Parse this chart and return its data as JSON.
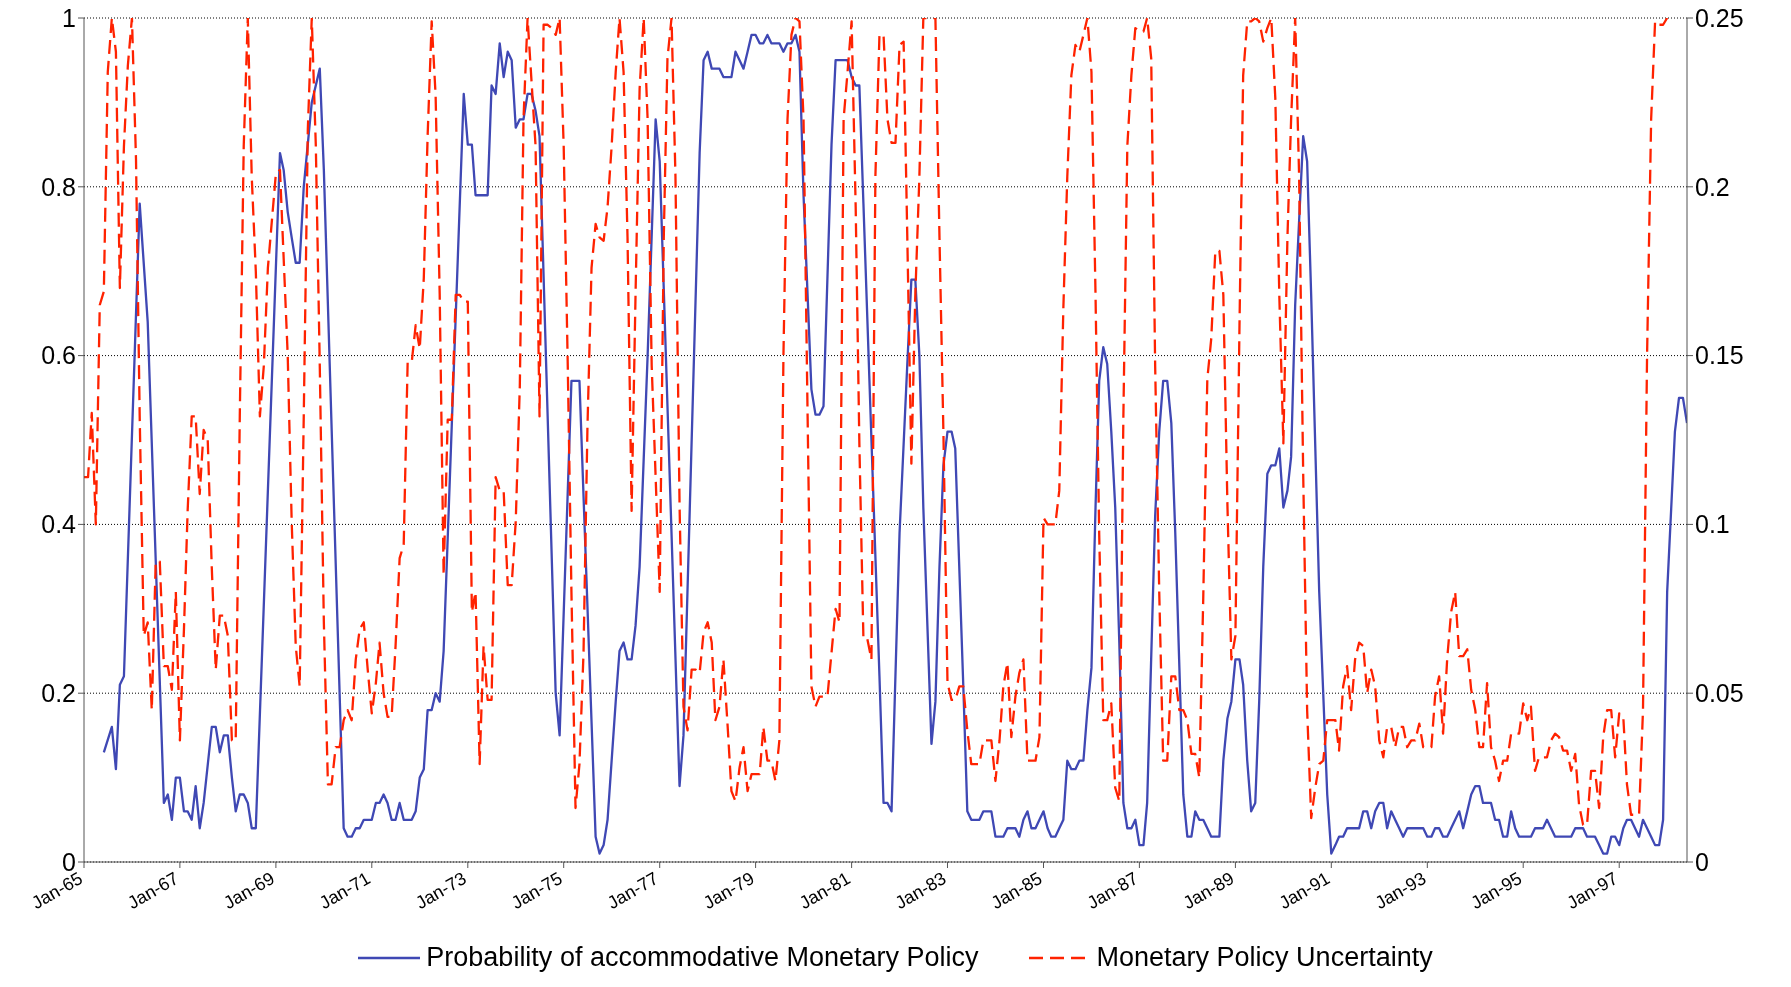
{
  "chart_data": {
    "type": "line",
    "legend": "bottom",
    "grid": "y",
    "xlim": [
      "1965-01",
      "1998-06"
    ],
    "xticks": [
      {
        "value": "1965-01",
        "label": "Jan-65"
      },
      {
        "value": "1967-01",
        "label": "Jan-67"
      },
      {
        "value": "1969-01",
        "label": "Jan-69"
      },
      {
        "value": "1971-01",
        "label": "Jan-71"
      },
      {
        "value": "1973-01",
        "label": "Jan-73"
      },
      {
        "value": "1975-01",
        "label": "Jan-75"
      },
      {
        "value": "1977-01",
        "label": "Jan-77"
      },
      {
        "value": "1979-01",
        "label": "Jan-79"
      },
      {
        "value": "1981-01",
        "label": "Jan-81"
      },
      {
        "value": "1983-01",
        "label": "Jan-83"
      },
      {
        "value": "1985-01",
        "label": "Jan-85"
      },
      {
        "value": "1987-01",
        "label": "Jan-87"
      },
      {
        "value": "1989-01",
        "label": "Jan-89"
      },
      {
        "value": "1991-01",
        "label": "Jan-91"
      },
      {
        "value": "1993-01",
        "label": "Jan-93"
      },
      {
        "value": "1995-01",
        "label": "Jan-95"
      },
      {
        "value": "1997-01",
        "label": "Jan-97"
      }
    ],
    "ylim": [
      0,
      1
    ],
    "yticks": [
      0,
      0.2,
      0.4,
      0.6,
      0.8,
      1
    ],
    "y2lim": [
      0,
      0.25
    ],
    "y2ticks": [
      0,
      0.05,
      0.1,
      0.15,
      0.2,
      0.25
    ],
    "series": [
      {
        "name": "Probability of accommodative Monetary Policy",
        "color": "#3f48b4",
        "line_style": "solid",
        "x": [
          "1965-06",
          "1965-08",
          "1965-09",
          "1965-10",
          "1965-11",
          "1966-03",
          "1966-05",
          "1966-09",
          "1966-10",
          "1966-11",
          "1966-12",
          "1967-01",
          "1967-02",
          "1967-03",
          "1967-04",
          "1967-05",
          "1967-06",
          "1967-07",
          "1967-09",
          "1967-10",
          "1967-11",
          "1967-12",
          "1968-01",
          "1968-02",
          "1968-03",
          "1968-04",
          "1968-05",
          "1968-06",
          "1968-07",
          "1968-08",
          "1969-02",
          "1969-03",
          "1969-04",
          "1969-05",
          "1969-06",
          "1969-07",
          "1969-08",
          "1969-10",
          "1969-12",
          "1970-01",
          "1970-06",
          "1970-07",
          "1970-08",
          "1970-09",
          "1970-10",
          "1970-11",
          "1970-12",
          "1971-01",
          "1971-02",
          "1971-03",
          "1971-04",
          "1971-05",
          "1971-06",
          "1971-07",
          "1971-08",
          "1971-09",
          "1971-10",
          "1971-11",
          "1971-12",
          "1972-01",
          "1972-02",
          "1972-03",
          "1972-04",
          "1972-05",
          "1972-06",
          "1972-07",
          "1972-12",
          "1973-01",
          "1973-02",
          "1973-03",
          "1973-04",
          "1973-05",
          "1973-06",
          "1973-07",
          "1973-08",
          "1973-09",
          "1973-10",
          "1973-11",
          "1973-12",
          "1974-01",
          "1974-02",
          "1974-03",
          "1974-04",
          "1974-05",
          "1974-06",
          "1974-07",
          "1974-11",
          "1974-12",
          "1975-03",
          "1975-04",
          "1975-05",
          "1975-09",
          "1975-10",
          "1975-11",
          "1975-12",
          "1976-02",
          "1976-03",
          "1976-04",
          "1976-05",
          "1976-06",
          "1976-07",
          "1976-08",
          "1976-10",
          "1976-12",
          "1977-01",
          "1977-06",
          "1977-07",
          "1977-11",
          "1977-12",
          "1978-01",
          "1978-02",
          "1978-03",
          "1978-04",
          "1978-05",
          "1978-06",
          "1978-07",
          "1978-08",
          "1978-09",
          "1978-10",
          "1978-11",
          "1978-12",
          "1979-01",
          "1979-02",
          "1979-03",
          "1979-04",
          "1979-05",
          "1979-06",
          "1979-07",
          "1979-08",
          "1979-09",
          "1979-10",
          "1979-11",
          "1979-12",
          "1980-01",
          "1980-03",
          "1980-04",
          "1980-05",
          "1980-06",
          "1980-08",
          "1980-09",
          "1980-10",
          "1980-11",
          "1980-12",
          "1981-01",
          "1981-02",
          "1981-03",
          "1981-04",
          "1981-08",
          "1981-09",
          "1981-10",
          "1981-11",
          "1982-01",
          "1982-03",
          "1982-04",
          "1982-05",
          "1982-06",
          "1982-07",
          "1982-09",
          "1982-10",
          "1982-11",
          "1982-12",
          "1983-01",
          "1983-02",
          "1983-03",
          "1983-05",
          "1983-06",
          "1983-07",
          "1983-08",
          "1983-09",
          "1983-10",
          "1983-11",
          "1983-12",
          "1984-01",
          "1984-02",
          "1984-03",
          "1984-04",
          "1984-05",
          "1984-06",
          "1984-07",
          "1984-08",
          "1984-09",
          "1984-10",
          "1984-11",
          "1984-12",
          "1985-01",
          "1985-02",
          "1985-03",
          "1985-04",
          "1985-05",
          "1985-06",
          "1985-07",
          "1985-08",
          "1985-09",
          "1985-10",
          "1985-11",
          "1985-12",
          "1986-01",
          "1986-02",
          "1986-03",
          "1986-04",
          "1986-05",
          "1986-06",
          "1986-07",
          "1986-08",
          "1986-09",
          "1986-10",
          "1986-11",
          "1986-12",
          "1987-01",
          "1987-02",
          "1987-03",
          "1987-05",
          "1987-06",
          "1987-07",
          "1987-08",
          "1987-09",
          "1987-10",
          "1987-12",
          "1988-01",
          "1988-02",
          "1988-03",
          "1988-04",
          "1988-05",
          "1988-06",
          "1988-07",
          "1988-08",
          "1988-09",
          "1988-10",
          "1988-11",
          "1988-12",
          "1989-01",
          "1989-02",
          "1989-03",
          "1989-04",
          "1989-05",
          "1989-06",
          "1989-07",
          "1989-08",
          "1989-09",
          "1989-10",
          "1989-11",
          "1989-12",
          "1990-01",
          "1990-02",
          "1990-03",
          "1990-04",
          "1990-05",
          "1990-06",
          "1990-07",
          "1990-08",
          "1990-10",
          "1990-12",
          "1991-01",
          "1991-02",
          "1991-03",
          "1991-04",
          "1991-05",
          "1991-06",
          "1991-07",
          "1991-08",
          "1991-09",
          "1991-10",
          "1991-11",
          "1991-12",
          "1992-01",
          "1992-02",
          "1992-03",
          "1992-04",
          "1992-05",
          "1992-06",
          "1992-07",
          "1992-08",
          "1992-09",
          "1992-10",
          "1992-11",
          "1992-12",
          "1993-01",
          "1993-02",
          "1993-03",
          "1993-04",
          "1993-05",
          "1993-06",
          "1993-07",
          "1993-08",
          "1993-09",
          "1993-10",
          "1993-11",
          "1993-12",
          "1994-01",
          "1994-02",
          "1994-03",
          "1994-04",
          "1994-05",
          "1994-06",
          "1994-07",
          "1994-08",
          "1994-09",
          "1994-10",
          "1994-11",
          "1994-12",
          "1995-01",
          "1995-02",
          "1995-03",
          "1995-04",
          "1995-05",
          "1995-06",
          "1995-07",
          "1995-08",
          "1995-09",
          "1995-10",
          "1995-11",
          "1995-12",
          "1996-01",
          "1996-02",
          "1996-03",
          "1996-04",
          "1996-05",
          "1996-06",
          "1996-07",
          "1996-08",
          "1996-09",
          "1996-10",
          "1996-11",
          "1996-12",
          "1997-01",
          "1997-02",
          "1997-03",
          "1997-04",
          "1997-06",
          "1997-07",
          "1997-08",
          "1997-09",
          "1997-10",
          "1997-11",
          "1997-12",
          "1998-01",
          "1998-03",
          "1998-04",
          "1998-05",
          "1998-06"
        ],
        "values": [
          0.13,
          0.16,
          0.11,
          0.21,
          0.22,
          0.78,
          0.64,
          0.07,
          0.08,
          0.05,
          0.1,
          0.1,
          0.06,
          0.06,
          0.05,
          0.09,
          0.04,
          0.07,
          0.16,
          0.16,
          0.13,
          0.15,
          0.15,
          0.1,
          0.06,
          0.08,
          0.08,
          0.07,
          0.04,
          0.04,
          0.84,
          0.82,
          0.77,
          0.74,
          0.71,
          0.71,
          0.8,
          0.9,
          0.94,
          0.82,
          0.04,
          0.03,
          0.03,
          0.04,
          0.04,
          0.05,
          0.05,
          0.05,
          0.07,
          0.07,
          0.08,
          0.07,
          0.05,
          0.05,
          0.07,
          0.05,
          0.05,
          0.05,
          0.06,
          0.1,
          0.11,
          0.18,
          0.18,
          0.2,
          0.19,
          0.25,
          0.91,
          0.85,
          0.85,
          0.79,
          0.79,
          0.79,
          0.79,
          0.92,
          0.91,
          0.97,
          0.93,
          0.96,
          0.95,
          0.87,
          0.88,
          0.88,
          0.91,
          0.91,
          0.89,
          0.86,
          0.2,
          0.15,
          0.57,
          0.57,
          0.57,
          0.03,
          0.01,
          0.02,
          0.05,
          0.19,
          0.25,
          0.26,
          0.24,
          0.24,
          0.28,
          0.35,
          0.6,
          0.88,
          0.83,
          0.09,
          0.15,
          0.84,
          0.95,
          0.96,
          0.94,
          0.94,
          0.94,
          0.93,
          0.93,
          0.93,
          0.96,
          0.95,
          0.94,
          0.96,
          0.98,
          0.98,
          0.97,
          0.97,
          0.98,
          0.97,
          0.97,
          0.97,
          0.96,
          0.97,
          0.97,
          0.98,
          0.96,
          0.79,
          0.56,
          0.53,
          0.53,
          0.54,
          0.85,
          0.95,
          0.95,
          0.95,
          0.95,
          0.93,
          0.92,
          0.92,
          0.78,
          0.22,
          0.07,
          0.07,
          0.06,
          0.39,
          0.59,
          0.69,
          0.69,
          0.6,
          0.42,
          0.14,
          0.19,
          0.35,
          0.47,
          0.51,
          0.51,
          0.49,
          0.21,
          0.06,
          0.05,
          0.05,
          0.05,
          0.06,
          0.06,
          0.06,
          0.03,
          0.03,
          0.03,
          0.04,
          0.04,
          0.04,
          0.03,
          0.05,
          0.06,
          0.04,
          0.04,
          0.05,
          0.06,
          0.04,
          0.03,
          0.03,
          0.04,
          0.05,
          0.12,
          0.11,
          0.11,
          0.12,
          0.12,
          0.18,
          0.23,
          0.42,
          0.57,
          0.61,
          0.59,
          0.51,
          0.42,
          0.26,
          0.07,
          0.04,
          0.04,
          0.05,
          0.02,
          0.02,
          0.07,
          0.41,
          0.51,
          0.57,
          0.57,
          0.52,
          0.39,
          0.08,
          0.03,
          0.03,
          0.06,
          0.05,
          0.05,
          0.04,
          0.03,
          0.03,
          0.03,
          0.12,
          0.17,
          0.19,
          0.24,
          0.24,
          0.21,
          0.12,
          0.06,
          0.07,
          0.19,
          0.35,
          0.46,
          0.47,
          0.47,
          0.49,
          0.42,
          0.44,
          0.48,
          0.66,
          0.76,
          0.86,
          0.83,
          0.67,
          0.32,
          0.08,
          0.01,
          0.02,
          0.03,
          0.03,
          0.04,
          0.04,
          0.04,
          0.04,
          0.06,
          0.06,
          0.04,
          0.06,
          0.07,
          0.07,
          0.04,
          0.06,
          0.05,
          0.04,
          0.03,
          0.04,
          0.04,
          0.04,
          0.04,
          0.04,
          0.03,
          0.03,
          0.04,
          0.04,
          0.03,
          0.03,
          0.04,
          0.05,
          0.06,
          0.04,
          0.06,
          0.08,
          0.09,
          0.09,
          0.07,
          0.07,
          0.07,
          0.05,
          0.05,
          0.03,
          0.03,
          0.06,
          0.04,
          0.03,
          0.03,
          0.03,
          0.03,
          0.04,
          0.04,
          0.04,
          0.05,
          0.04,
          0.03,
          0.03,
          0.03,
          0.03,
          0.03,
          0.04,
          0.04,
          0.04,
          0.03,
          0.03,
          0.03,
          0.02,
          0.01,
          0.01,
          0.03,
          0.03,
          0.02,
          0.04,
          0.05,
          0.05,
          0.03,
          0.05,
          0.04,
          0.03,
          0.02,
          0.02,
          0.05,
          0.32,
          0.51,
          0.55,
          0.55,
          0.52
        ]
      },
      {
        "name": "Monetary Policy Uncertainty",
        "color": "#ff2200",
        "line_style": "dashed",
        "axis": "y2",
        "x": [
          "1965-01",
          "1965-02",
          "1965-03",
          "1965-04",
          "1965-05",
          "1965-06",
          "1965-07",
          "1965-08",
          "1965-09",
          "1965-10",
          "1965-11",
          "1965-12",
          "1966-01",
          "1966-02",
          "1966-03",
          "1966-04",
          "1966-05",
          "1966-06",
          "1966-07",
          "1966-08",
          "1966-09",
          "1966-10",
          "1966-11",
          "1966-12",
          "1967-01",
          "1967-02",
          "1967-03",
          "1967-04",
          "1967-05",
          "1967-06",
          "1967-07",
          "1967-08",
          "1967-09",
          "1967-10",
          "1967-11",
          "1967-12",
          "1968-01",
          "1968-02",
          "1968-03",
          "1968-04",
          "1968-05",
          "1968-06",
          "1968-07",
          "1968-08",
          "1968-09",
          "1968-10",
          "1968-11",
          "1969-01",
          "1969-02",
          "1969-04",
          "1969-05",
          "1969-06",
          "1969-07",
          "1969-08",
          "1969-09",
          "1969-10",
          "1969-11",
          "1969-12",
          "1970-01",
          "1970-02",
          "1970-03",
          "1970-04",
          "1970-05",
          "1970-06",
          "1970-07",
          "1970-08",
          "1970-09",
          "1970-10",
          "1970-11",
          "1970-12",
          "1971-01",
          "1971-02",
          "1971-03",
          "1971-04",
          "1971-05",
          "1971-06",
          "1971-07",
          "1971-08",
          "1971-09",
          "1971-10",
          "1971-11",
          "1971-12",
          "1972-01",
          "1972-02",
          "1972-03",
          "1972-04",
          "1972-05",
          "1972-06",
          "1972-07",
          "1972-08",
          "1972-09",
          "1972-10",
          "1972-11",
          "1972-12",
          "1973-01",
          "1973-02",
          "1973-03",
          "1973-04",
          "1973-05",
          "1973-06",
          "1973-07",
          "1973-08",
          "1973-09",
          "1973-10",
          "1973-11",
          "1973-12",
          "1974-01",
          "1974-02",
          "1974-03",
          "1974-04",
          "1974-06",
          "1974-07",
          "1974-08",
          "1974-09",
          "1974-10",
          "1974-11",
          "1974-12",
          "1975-01",
          "1975-02",
          "1975-03",
          "1975-04",
          "1975-05",
          "1975-06",
          "1975-07",
          "1975-08",
          "1975-09",
          "1975-10",
          "1975-11",
          "1975-12",
          "1976-01",
          "1976-02",
          "1976-03",
          "1976-04",
          "1976-05",
          "1976-06",
          "1976-07",
          "1976-08",
          "1976-09",
          "1976-10",
          "1976-11",
          "1977-01",
          "1977-02",
          "1977-03",
          "1977-04",
          "1977-05",
          "1977-06",
          "1977-07",
          "1977-08",
          "1977-09",
          "1977-10",
          "1977-11",
          "1977-12",
          "1978-01",
          "1978-02",
          "1978-03",
          "1978-04",
          "1978-05",
          "1978-06",
          "1978-07",
          "1978-08",
          "1978-09",
          "1978-10",
          "1978-11",
          "1978-12",
          "1979-01",
          "1979-02",
          "1979-03",
          "1979-04",
          "1979-05",
          "1979-06",
          "1979-07",
          "1979-08",
          "1979-09",
          "1979-10",
          "1979-11",
          "1979-12",
          "1980-01",
          "1980-02",
          "1980-03",
          "1980-04",
          "1980-05",
          "1980-06",
          "1980-07",
          "1980-08",
          "1980-09",
          "1980-10",
          "1980-11",
          "1980-12",
          "1981-01",
          "1981-02",
          "1981-03",
          "1981-04",
          "1981-05",
          "1981-06",
          "1981-07",
          "1981-08",
          "1981-09",
          "1981-10",
          "1981-11",
          "1981-12",
          "1982-01",
          "1982-02",
          "1982-03",
          "1982-04",
          "1982-05",
          "1982-06",
          "1982-07",
          "1982-08",
          "1982-09",
          "1982-10",
          "1982-11",
          "1982-12",
          "1983-01",
          "1983-02",
          "1983-03",
          "1983-04",
          "1983-05",
          "1983-06",
          "1983-07",
          "1983-08",
          "1983-09",
          "1983-10",
          "1983-11",
          "1983-12",
          "1984-01",
          "1984-02",
          "1984-03",
          "1984-04",
          "1984-05",
          "1984-06",
          "1984-07",
          "1984-08",
          "1984-09",
          "1984-10",
          "1984-11",
          "1984-12",
          "1985-01",
          "1985-02",
          "1985-03",
          "1985-04",
          "1985-05",
          "1985-06",
          "1985-07",
          "1985-08",
          "1985-09",
          "1985-10",
          "1985-11",
          "1985-12",
          "1986-01",
          "1986-02",
          "1986-03",
          "1986-04",
          "1986-05",
          "1986-06",
          "1986-07",
          "1986-08",
          "1986-09",
          "1986-10",
          "1986-11",
          "1986-12",
          "1987-01",
          "1987-02",
          "1987-03",
          "1987-04",
          "1987-05",
          "1987-06",
          "1987-07",
          "1987-08",
          "1987-09",
          "1987-10",
          "1987-11",
          "1987-12",
          "1988-01",
          "1988-02",
          "1988-03",
          "1988-04",
          "1988-05",
          "1988-06",
          "1988-07",
          "1988-08",
          "1988-09",
          "1988-10",
          "1988-11",
          "1988-12",
          "1989-01",
          "1989-02",
          "1989-03",
          "1989-04",
          "1989-05",
          "1989-06",
          "1989-07",
          "1989-08",
          "1989-09",
          "1989-10",
          "1989-11",
          "1989-12",
          "1990-01",
          "1990-02",
          "1990-03",
          "1990-04",
          "1990-05",
          "1990-06",
          "1990-07",
          "1990-08",
          "1990-09",
          "1990-10",
          "1990-11",
          "1990-12",
          "1991-01",
          "1991-02",
          "1991-03",
          "1991-04",
          "1991-05",
          "1991-06",
          "1991-07",
          "1991-08",
          "1991-09",
          "1991-10",
          "1991-11",
          "1991-12",
          "1992-01",
          "1992-02",
          "1992-03",
          "1992-04",
          "1992-05",
          "1992-06",
          "1992-07",
          "1992-08",
          "1992-09",
          "1992-10",
          "1992-11",
          "1992-12",
          "1993-01",
          "1993-02",
          "1993-03",
          "1993-04",
          "1993-05",
          "1993-06",
          "1993-07",
          "1993-08",
          "1993-09",
          "1993-10",
          "1993-11",
          "1993-12",
          "1994-01",
          "1994-02",
          "1994-03",
          "1994-04",
          "1994-05",
          "1994-06",
          "1994-07",
          "1994-08",
          "1994-09",
          "1994-10",
          "1994-11",
          "1994-12",
          "1995-01",
          "1995-02",
          "1995-03",
          "1995-04",
          "1995-05",
          "1995-06",
          "1995-07",
          "1995-08",
          "1995-09",
          "1995-10",
          "1995-11",
          "1995-12",
          "1996-01",
          "1996-02",
          "1996-03",
          "1996-04",
          "1996-05",
          "1996-06",
          "1996-07",
          "1996-08",
          "1996-09",
          "1996-10",
          "1996-11",
          "1996-12",
          "1997-01",
          "1997-02",
          "1997-03",
          "1997-04",
          "1997-06",
          "1997-07",
          "1997-08",
          "1997-09",
          "1997-10",
          "1997-11",
          "1997-12",
          "1998-01"
        ],
        "values": [
          0.114,
          0.114,
          0.133,
          0.1,
          0.165,
          0.169,
          0.234,
          0.25,
          0.24,
          0.17,
          0.212,
          0.236,
          0.25,
          0.208,
          0.132,
          0.067,
          0.071,
          0.045,
          0.089,
          0.089,
          0.058,
          0.058,
          0.051,
          0.08,
          0.036,
          0.069,
          0.104,
          0.132,
          0.132,
          0.109,
          0.128,
          0.125,
          0.087,
          0.057,
          0.073,
          0.073,
          0.067,
          0.036,
          0.036,
          0.132,
          0.212,
          0.25,
          0.203,
          0.175,
          0.132,
          0.147,
          0.176,
          0.204,
          0.205,
          0.15,
          0.101,
          0.064,
          0.052,
          0.132,
          0.217,
          0.25,
          0.212,
          0.147,
          0.071,
          0.023,
          0.023,
          0.034,
          0.034,
          0.042,
          0.045,
          0.042,
          0.06,
          0.069,
          0.071,
          0.057,
          0.044,
          0.053,
          0.065,
          0.05,
          0.043,
          0.043,
          0.064,
          0.09,
          0.094,
          0.148,
          0.148,
          0.159,
          0.152,
          0.173,
          0.215,
          0.249,
          0.227,
          0.168,
          0.085,
          0.131,
          0.131,
          0.168,
          0.168,
          0.166,
          0.166,
          0.074,
          0.08,
          0.029,
          0.064,
          0.048,
          0.048,
          0.114,
          0.11,
          0.11,
          0.082,
          0.082,
          0.101,
          0.141,
          0.22,
          0.25,
          0.212,
          0.132,
          0.248,
          0.248,
          0.247,
          0.245,
          0.25,
          0.212,
          0.147,
          0.08,
          0.016,
          0.029,
          0.062,
          0.129,
          0.176,
          0.189,
          0.185,
          0.184,
          0.194,
          0.212,
          0.234,
          0.25,
          0.234,
          0.185,
          0.104,
          0.168,
          0.229,
          0.25,
          0.22,
          0.147,
          0.08,
          0.185,
          0.238,
          0.25,
          0.203,
          0.106,
          0.046,
          0.039,
          0.057,
          0.057,
          0.056,
          0.068,
          0.071,
          0.065,
          0.042,
          0.046,
          0.06,
          0.041,
          0.021,
          0.018,
          0.028,
          0.034,
          0.021,
          0.026,
          0.026,
          0.026,
          0.04,
          0.03,
          0.03,
          0.024,
          0.036,
          0.15,
          0.22,
          0.245,
          0.25,
          0.249,
          0.22,
          0.132,
          0.052,
          0.046,
          0.049,
          0.049,
          0.049,
          0.062,
          0.075,
          0.071,
          0.22,
          0.234,
          0.249,
          0.194,
          0.124,
          0.066,
          0.066,
          0.06,
          0.203,
          0.245,
          0.245,
          0.22,
          0.213,
          0.213,
          0.242,
          0.243,
          0.185,
          0.118,
          0.168,
          0.203,
          0.25,
          0.25,
          0.25,
          0.25,
          0.185,
          0.127,
          0.053,
          0.048,
          0.048,
          0.052,
          0.052,
          0.039,
          0.029,
          0.029,
          0.029,
          0.036,
          0.036,
          0.036,
          0.024,
          0.036,
          0.052,
          0.059,
          0.037,
          0.049,
          0.056,
          0.06,
          0.03,
          0.03,
          0.03,
          0.037,
          0.102,
          0.1,
          0.1,
          0.1,
          0.11,
          0.164,
          0.203,
          0.233,
          0.242,
          0.24,
          0.245,
          0.25,
          0.234,
          0.168,
          0.097,
          0.042,
          0.042,
          0.047,
          0.022,
          0.018,
          0.132,
          0.212,
          0.233,
          0.247,
          0.246,
          0.246,
          0.25,
          0.238,
          0.147,
          0.08,
          0.03,
          0.03,
          0.055,
          0.055,
          0.045,
          0.045,
          0.042,
          0.032,
          0.032,
          0.025,
          0.078,
          0.143,
          0.155,
          0.181,
          0.181,
          0.168,
          0.106,
          0.06,
          0.067,
          0.159,
          0.233,
          0.249,
          0.249,
          0.25,
          0.249,
          0.243,
          0.247,
          0.25,
          0.226,
          0.168,
          0.124,
          0.185,
          0.22,
          0.25,
          0.203,
          0.115,
          0.045,
          0.013,
          0.022,
          0.029,
          0.03,
          0.042,
          0.042,
          0.042,
          0.033,
          0.052,
          0.058,
          0.045,
          0.06,
          0.065,
          0.064,
          0.05,
          0.057,
          0.052,
          0.036,
          0.031,
          0.04,
          0.04,
          0.034,
          0.04,
          0.04,
          0.034,
          0.036,
          0.036,
          0.041,
          0.034,
          0.034,
          0.034,
          0.049,
          0.055,
          0.038,
          0.06,
          0.074,
          0.08,
          0.061,
          0.061,
          0.063,
          0.051,
          0.045,
          0.034,
          0.034,
          0.053,
          0.034,
          0.03,
          0.024,
          0.03,
          0.03,
          0.038,
          0.038,
          0.038,
          0.047,
          0.042,
          0.046,
          0.027,
          0.031,
          0.031,
          0.031,
          0.036,
          0.038,
          0.037,
          0.033,
          0.033,
          0.027,
          0.032,
          0.017,
          0.011,
          0.011,
          0.027,
          0.027,
          0.016,
          0.037,
          0.045,
          0.045,
          0.031,
          0.044,
          0.043,
          0.023,
          0.014,
          0.014,
          0.045,
          0.15,
          0.22,
          0.249,
          0.248,
          0.248,
          0.25
        ]
      }
    ]
  }
}
